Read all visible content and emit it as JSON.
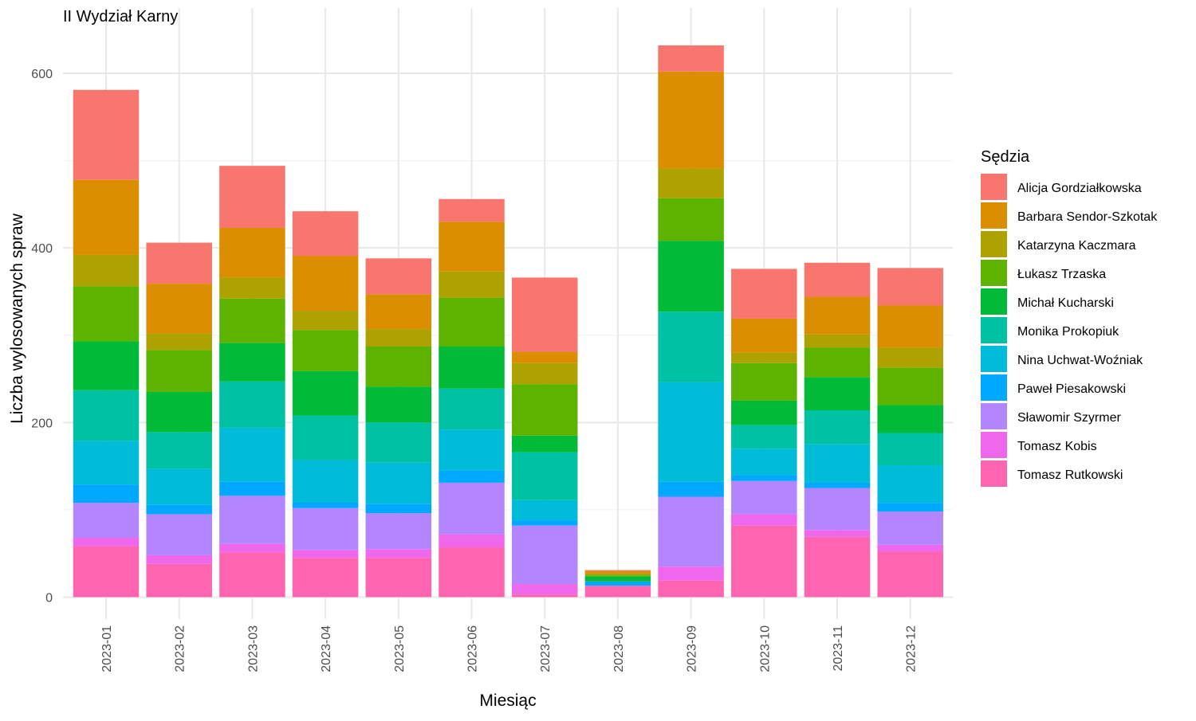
{
  "chart_data": {
    "type": "bar",
    "stacked": true,
    "title": "II Wydział Karny",
    "xlabel": "Miesiąc",
    "ylabel": "Liczba wylosowanych spraw",
    "ylim": [
      0,
      660
    ],
    "yticks": [
      0,
      200,
      400,
      600
    ],
    "grid": true,
    "legend_title": "Sędzia",
    "legend_position": "right",
    "categories": [
      "2023-01",
      "2023-02",
      "2023-03",
      "2023-04",
      "2023-05",
      "2023-06",
      "2023-07",
      "2023-08",
      "2023-09",
      "2023-10",
      "2023-11",
      "2023-12"
    ],
    "series": [
      {
        "name": "Tomasz Rutkowski",
        "color": "#FF64B0",
        "values": [
          58,
          38,
          51,
          45,
          45,
          57,
          3,
          13,
          19,
          82,
          69,
          52
        ]
      },
      {
        "name": "Tomasz Kobis",
        "color": "#EF67EB",
        "values": [
          10,
          10,
          10,
          9,
          10,
          15,
          12,
          0,
          16,
          13,
          8,
          8
        ]
      },
      {
        "name": "Sławomir Szyrmer",
        "color": "#B385FF",
        "values": [
          40,
          47,
          55,
          48,
          41,
          59,
          67,
          0,
          80,
          38,
          48,
          38
        ]
      },
      {
        "name": "Paweł Piesakowski",
        "color": "#00A9FF",
        "values": [
          21,
          11,
          16,
          7,
          11,
          14,
          6,
          5,
          17,
          7,
          6,
          10
        ]
      },
      {
        "name": "Nina Uchwat-Woźniak",
        "color": "#00BCD8",
        "values": [
          50,
          41,
          62,
          48,
          47,
          47,
          23,
          0,
          114,
          30,
          44,
          43
        ]
      },
      {
        "name": "Monika Prokopiuk",
        "color": "#00C1A3",
        "values": [
          58,
          42,
          53,
          51,
          46,
          47,
          55,
          0,
          81,
          27,
          39,
          37
        ]
      },
      {
        "name": "Michał Kucharski",
        "color": "#00BA38",
        "values": [
          56,
          46,
          44,
          51,
          41,
          48,
          19,
          6,
          81,
          28,
          38,
          32
        ]
      },
      {
        "name": "Łukasz Trzaska",
        "color": "#5EB300",
        "values": [
          63,
          48,
          51,
          47,
          46,
          56,
          59,
          1,
          49,
          43,
          34,
          43
        ]
      },
      {
        "name": "Katarzyna Kaczmara",
        "color": "#ADA200",
        "values": [
          36,
          19,
          24,
          22,
          20,
          30,
          24,
          2,
          34,
          12,
          15,
          23
        ]
      },
      {
        "name": "Barbara Sendor-Szkotak",
        "color": "#DB8E00",
        "values": [
          86,
          57,
          57,
          63,
          40,
          57,
          13,
          3,
          111,
          39,
          43,
          48
        ]
      },
      {
        "name": "Alicja Gordziałkowska",
        "color": "#F8766D",
        "values": [
          103,
          47,
          71,
          51,
          41,
          26,
          85,
          1,
          30,
          57,
          39,
          43
        ]
      }
    ],
    "legend_order": [
      "Alicja Gordziałkowska",
      "Barbara Sendor-Szkotak",
      "Katarzyna Kaczmara",
      "Łukasz Trzaska",
      "Michał Kucharski",
      "Monika Prokopiuk",
      "Nina Uchwat-Woźniak",
      "Paweł Piesakowski",
      "Sławomir Szyrmer",
      "Tomasz Kobis",
      "Tomasz Rutkowski"
    ]
  }
}
